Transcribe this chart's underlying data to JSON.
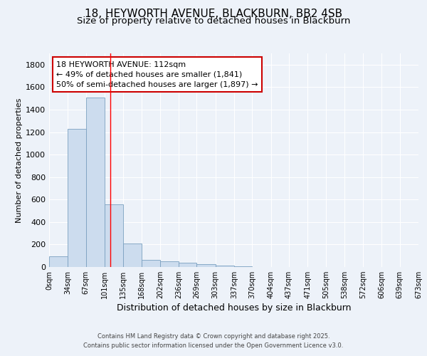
{
  "title_line1": "18, HEYWORTH AVENUE, BLACKBURN, BB2 4SB",
  "title_line2": "Size of property relative to detached houses in Blackburn",
  "xlabel": "Distribution of detached houses by size in Blackburn",
  "ylabel": "Number of detached properties",
  "bar_values": [
    95,
    1230,
    1510,
    560,
    210,
    65,
    48,
    40,
    25,
    12,
    5,
    0,
    0,
    0,
    0,
    0,
    0,
    0,
    0,
    0
  ],
  "bar_edges": [
    0,
    34,
    67,
    101,
    135,
    168,
    202,
    236,
    269,
    303,
    337,
    370,
    404,
    437,
    471,
    505,
    538,
    572,
    606,
    639,
    673
  ],
  "tick_labels": [
    "0sqm",
    "34sqm",
    "67sqm",
    "101sqm",
    "135sqm",
    "168sqm",
    "202sqm",
    "236sqm",
    "269sqm",
    "303sqm",
    "337sqm",
    "370sqm",
    "404sqm",
    "437sqm",
    "471sqm",
    "505sqm",
    "538sqm",
    "572sqm",
    "606sqm",
    "639sqm",
    "673sqm"
  ],
  "bar_color": "#ccdcee",
  "bar_edge_color": "#7aa0c0",
  "background_color": "#edf2f9",
  "grid_color": "#ffffff",
  "red_line_x": 112,
  "annotation_title": "18 HEYWORTH AVENUE: 112sqm",
  "annotation_line1": "← 49% of detached houses are smaller (1,841)",
  "annotation_line2": "50% of semi-detached houses are larger (1,897) →",
  "annotation_box_color": "#ffffff",
  "annotation_border_color": "#cc0000",
  "ylim": [
    0,
    1900
  ],
  "yticks": [
    0,
    200,
    400,
    600,
    800,
    1000,
    1200,
    1400,
    1600,
    1800
  ],
  "footer_line1": "Contains HM Land Registry data © Crown copyright and database right 2025.",
  "footer_line2": "Contains public sector information licensed under the Open Government Licence v3.0."
}
